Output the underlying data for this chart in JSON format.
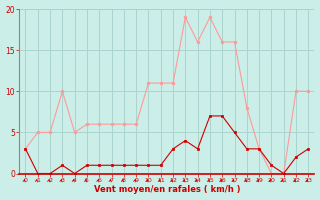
{
  "hours": [
    0,
    1,
    2,
    3,
    4,
    5,
    6,
    7,
    8,
    9,
    10,
    11,
    12,
    13,
    14,
    15,
    16,
    17,
    18,
    19,
    20,
    21,
    22,
    23
  ],
  "wind_avg": [
    3,
    0,
    0,
    1,
    0,
    1,
    1,
    1,
    1,
    1,
    1,
    1,
    3,
    4,
    3,
    7,
    7,
    5,
    3,
    3,
    1,
    0,
    2,
    3
  ],
  "wind_gust": [
    3,
    5,
    5,
    10,
    5,
    6,
    6,
    6,
    6,
    6,
    11,
    11,
    11,
    19,
    16,
    19,
    16,
    16,
    8,
    3,
    0,
    0,
    10,
    10
  ],
  "bg_color": "#cceee8",
  "grid_color": "#aad4ce",
  "line_avg_color": "#cc0000",
  "line_gust_color": "#ff9999",
  "xlabel": "Vent moyen/en rafales ( km/h )",
  "xlabel_color": "#cc0000",
  "tick_color": "#cc0000",
  "arrow_color": "#cc0000",
  "ylim": [
    0,
    20
  ],
  "yticks": [
    0,
    5,
    10,
    15,
    20
  ],
  "spine_bottom_color": "#cc0000",
  "spine_left_color": "#888888"
}
